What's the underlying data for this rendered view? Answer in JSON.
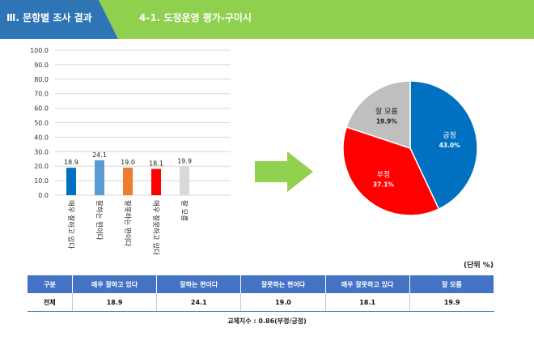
{
  "header": {
    "section_title": "Ⅲ. 문항별 조사 결과",
    "subtitle": "4-1. 도정운영 평가-구미시"
  },
  "colors": {
    "header_dark": "#2e75b6",
    "header_green": "#8fd14f",
    "arrow_green": "#92d050",
    "positive": "#0070c0",
    "negative": "#ff0000",
    "neutral": "#bfbfbf",
    "table_header": "#4472c4"
  },
  "chart_data": [
    {
      "type": "bar",
      "categories": [
        "매우 잘하고 있다",
        "잘하는 편이다",
        "잘못하는 편이다",
        "매우 잘못하고 있다",
        "잘 모름"
      ],
      "values": [
        18.9,
        24.1,
        19.0,
        18.1,
        19.9
      ],
      "colors": [
        "#0070c0",
        "#5b9bd5",
        "#ed7d31",
        "#ff0000",
        "#d9d9d9"
      ],
      "yticks": [
        "0.0",
        "10.0",
        "20.0",
        "30.0",
        "40.0",
        "50.0",
        "60.0",
        "70.0",
        "80.0",
        "90.0",
        "100.0"
      ],
      "ylim": [
        0,
        100
      ],
      "grid": true
    },
    {
      "type": "pie",
      "labels": [
        "긍정",
        "부정",
        "잘 모름"
      ],
      "values": [
        43.0,
        37.1,
        19.9
      ],
      "value_labels": [
        "43.0%",
        "37.1%",
        "19.9%"
      ],
      "colors": [
        "#0070c0",
        "#ff0000",
        "#bfbfbf"
      ]
    }
  ],
  "unit_label": "(단위 %)",
  "table": {
    "headers": [
      "구분",
      "매우 잘하고 있다",
      "잘하는 편이다",
      "잘못하는 편이다",
      "매우 잘못하고 있다",
      "잘 모름"
    ],
    "rows": [
      [
        "전체",
        "18.9",
        "24.1",
        "19.0",
        "18.1",
        "19.9"
      ]
    ]
  },
  "note": "교체지수 : 0.86(부정/긍정)"
}
